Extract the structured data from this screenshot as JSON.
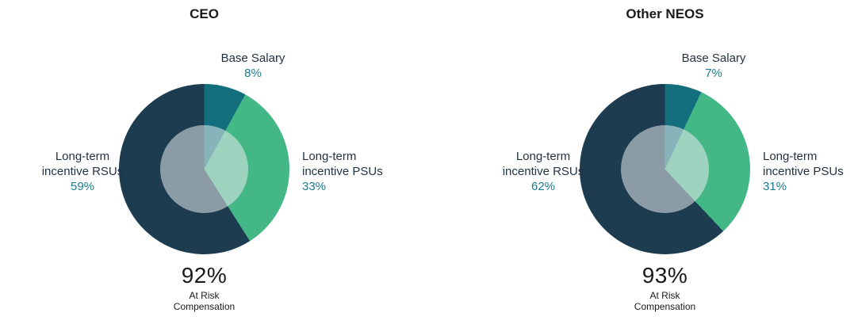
{
  "charts": [
    {
      "title": "CEO",
      "base_label": "Base Salary",
      "base_pct": "8%",
      "psu_line1": "Long-term",
      "psu_line2": "incentive PSUs",
      "psu_pct": "33%",
      "rsu_line1": "Long-term",
      "rsu_line2": "incentive RSUs",
      "rsu_pct": "59%",
      "risk_pct": "92%",
      "risk_line1": "At Risk",
      "risk_line2": "Compensation"
    },
    {
      "title": "Other NEOS",
      "base_label": "Base Salary",
      "base_pct": "7%",
      "psu_line1": "Long-term",
      "psu_line2": "incentive PSUs",
      "psu_pct": "31%",
      "rsu_line1": "Long-term",
      "rsu_line2": "incentive RSUs",
      "rsu_pct": "62%",
      "risk_pct": "93%",
      "risk_line1": "At Risk",
      "risk_line2": "Compensation"
    }
  ],
  "colors": {
    "slice_base_salary": "#136f7d",
    "slice_psu": "#44b786",
    "slice_rsu": "#1d3c50",
    "pct_text": "#1a7b8c",
    "inner_overlay": "rgba(231,235,238,0.55)"
  },
  "chart_data": [
    {
      "type": "pie",
      "title": "CEO",
      "categories": [
        "Base Salary",
        "Long-term incentive PSUs",
        "Long-term incentive RSUs"
      ],
      "values": [
        8,
        33,
        59
      ],
      "colors": [
        "#136f7d",
        "#44b786",
        "#1d3c50"
      ],
      "start_angle_deg": 0,
      "direction": "clockwise",
      "center_annotation": "92% At Risk Compensation",
      "legend_position": "none"
    },
    {
      "type": "pie",
      "title": "Other NEOS",
      "categories": [
        "Base Salary",
        "Long-term incentive PSUs",
        "Long-term incentive RSUs"
      ],
      "values": [
        7,
        31,
        62
      ],
      "colors": [
        "#136f7d",
        "#44b786",
        "#1d3c50"
      ],
      "start_angle_deg": 0,
      "direction": "clockwise",
      "center_annotation": "93% At Risk Compensation",
      "legend_position": "none"
    }
  ]
}
